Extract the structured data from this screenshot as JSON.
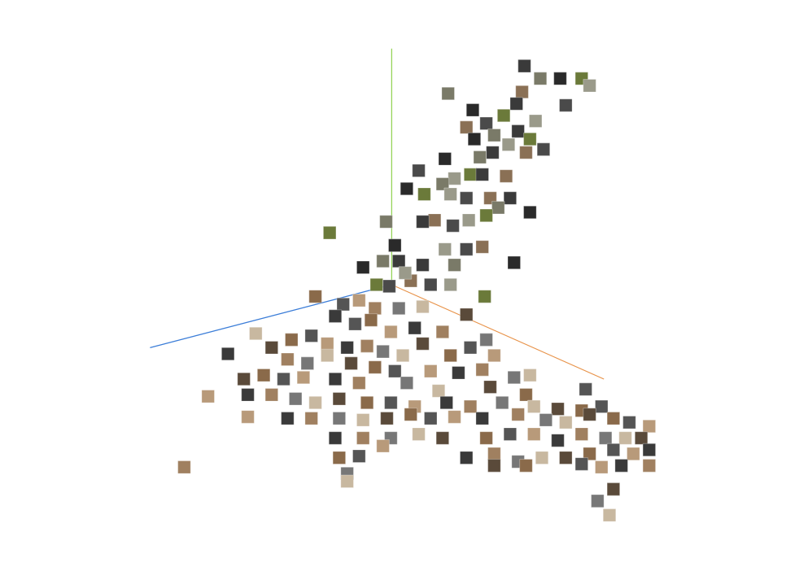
{
  "chart_data": {
    "type": "scatter",
    "xlim": [
      0,
      993
    ],
    "ylim": [
      697,
      0
    ],
    "grid": false,
    "tick_labels": false,
    "series": [
      {
        "type": "line",
        "color": "#8fd14f",
        "line_style": "solid",
        "x": [
          481,
          481
        ],
        "values": [
          350,
          50
        ]
      },
      {
        "type": "line",
        "color": "#3b7dd8",
        "line_style": "solid",
        "x": [
          481,
          177
        ],
        "values": [
          350,
          430
        ]
      },
      {
        "type": "line",
        "color": "#e8934a",
        "line_style": "solid",
        "x": [
          481,
          748
        ],
        "values": [
          350,
          470
        ]
      },
      {
        "type": "scatter",
        "marker": "square",
        "x": [
          648,
          668,
          693,
          720,
          730,
          700,
          645,
          638,
          552,
          583,
          622,
          662,
          600,
          575,
          640,
          610,
          585,
          655,
          628,
          672,
          650,
          608,
          592,
          548,
          580,
          560,
          515,
          625,
          595,
          545,
          500,
          522,
          555,
          575,
          605,
          630,
          615,
          655,
          600,
          578,
          558,
          535,
          520,
          474,
          485,
          403,
          548,
          575,
          595,
          520,
          560,
          635,
          598,
          555,
          530,
          505,
          490,
          470,
          445,
          462,
          498,
          478,
          385,
          420,
          440,
          410,
          460,
          490,
          520,
          575,
          455,
          435,
          480,
          510,
          545,
          600,
          310,
          330,
          355,
          380,
          400,
          425,
          450,
          470,
          495,
          520,
          555,
          580,
          610,
          275,
          350,
          375,
          400,
          430,
          460,
          485,
          530,
          565,
          595,
          635,
          655,
          295,
          320,
          345,
          370,
          410,
          440,
          500,
          540,
          605,
          650,
          725,
          250,
          300,
          330,
          360,
          385,
          415,
          450,
          480,
          510,
          550,
          580,
          620,
          660,
          690,
          720,
          745,
          300,
          350,
          380,
          415,
          445,
          475,
          505,
          530,
          560,
          595,
          640,
          675,
          700,
          730,
          760,
          780,
          805,
          410,
          445,
          480,
          515,
          545,
          600,
          630,
          660,
          690,
          720,
          750,
          775,
          795,
          415,
          440,
          470,
          575,
          610,
          640,
          670,
          700,
          730,
          760,
          785,
          805,
          220,
          425,
          425,
          610,
          650,
          720,
          745,
          770,
          805,
          740,
          755,
          760
        ],
        "values": [
          72,
          88,
          88,
          88,
          97,
          122,
          105,
          120,
          107,
          128,
          135,
          142,
          145,
          150,
          155,
          160,
          165,
          165,
          172,
          178,
          182,
          182,
          188,
          190,
          210,
          215,
          205,
          212,
          210,
          222,
          228,
          235,
          235,
          240,
          240,
          240,
          252,
          258,
          262,
          268,
          275,
          268,
          270,
          270,
          300,
          284,
          305,
          305,
          302,
          325,
          325,
          322,
          365,
          350,
          350,
          345,
          320,
          320,
          328,
          350,
          335,
          352,
          365,
          375,
          370,
          390,
          380,
          380,
          378,
          388,
          395,
          400,
          410,
          405,
          410,
          420,
          412,
          430,
          420,
          415,
          425,
          430,
          428,
          435,
          440,
          425,
          440,
          430,
          440,
          438,
          445,
          450,
          440,
          450,
          455,
          460,
          460,
          462,
          458,
          468,
          465,
          470,
          465,
          470,
          468,
          470,
          475,
          475,
          485,
          480,
          490,
          483,
          492,
          490,
          490,
          495,
          500,
          495,
          500,
          500,
          505,
          500,
          505,
          500,
          505,
          508,
          510,
          505,
          518,
          520,
          520,
          520,
          522,
          520,
          515,
          520,
          518,
          520,
          515,
          522,
          525,
          515,
          520,
          525,
          530,
          545,
          545,
          545,
          540,
          545,
          545,
          540,
          540,
          548,
          540,
          545,
          545,
          545,
          570,
          568,
          555,
          570,
          565,
          575,
          570,
          570,
          565,
          560,
          565,
          560,
          582,
          590,
          600,
          580,
          580,
          578,
          582,
          580,
          580,
          625,
          643,
          610
        ],
        "colors": [
          "#3a3a3a",
          "#7a7a68",
          "#2a2a2a",
          "#6b7a3a",
          "#9a9a8a",
          "#4a4a4a",
          "#8a7055",
          "#3a3a3a",
          "#7a7a68",
          "#2a2a2a",
          "#6b7a3a",
          "#9a9a8a",
          "#4a4a4a",
          "#8a7055",
          "#3a3a3a",
          "#7a7a68",
          "#2a2a2a",
          "#6b7a3a",
          "#9a9a8a",
          "#4a4a4a",
          "#8a7055",
          "#3a3a3a",
          "#7a7a68",
          "#2a2a2a",
          "#6b7a3a",
          "#9a9a8a",
          "#4a4a4a",
          "#8a7055",
          "#3a3a3a",
          "#7a7a68",
          "#2a2a2a",
          "#6b7a3a",
          "#9a9a8a",
          "#4a4a4a",
          "#8a7055",
          "#3a3a3a",
          "#7a7a68",
          "#2a2a2a",
          "#6b7a3a",
          "#9a9a8a",
          "#4a4a4a",
          "#8a7055",
          "#3a3a3a",
          "#7a7a68",
          "#2a2a2a",
          "#6b7a3a",
          "#9a9a8a",
          "#4a4a4a",
          "#8a7055",
          "#3a3a3a",
          "#7a7a68",
          "#2a2a2a",
          "#6b7a3a",
          "#9a9a8a",
          "#4a4a4a",
          "#8a7055",
          "#3a3a3a",
          "#7a7a68",
          "#2a2a2a",
          "#6b7a3a",
          "#9a9a8a",
          "#4a4a4a",
          "#8a6a4a",
          "#555555",
          "#b89a7a",
          "#3a3a3a",
          "#a08060",
          "#777777",
          "#c8b8a0",
          "#5a4a3a",
          "#8a6a4a",
          "#555555",
          "#b89a7a",
          "#3a3a3a",
          "#a08060",
          "#777777",
          "#c8b8a0",
          "#5a4a3a",
          "#8a6a4a",
          "#555555",
          "#b89a7a",
          "#3a3a3a",
          "#a08060",
          "#777777",
          "#c8b8a0",
          "#5a4a3a",
          "#8a6a4a",
          "#555555",
          "#b89a7a",
          "#3a3a3a",
          "#a08060",
          "#777777",
          "#c8b8a0",
          "#5a4a3a",
          "#8a6a4a",
          "#555555",
          "#b89a7a",
          "#3a3a3a",
          "#a08060",
          "#777777",
          "#c8b8a0",
          "#5a4a3a",
          "#8a6a4a",
          "#555555",
          "#b89a7a",
          "#3a3a3a",
          "#a08060",
          "#777777",
          "#c8b8a0",
          "#5a4a3a",
          "#8a6a4a",
          "#555555",
          "#b89a7a",
          "#3a3a3a",
          "#a08060",
          "#777777",
          "#c8b8a0",
          "#5a4a3a",
          "#8a6a4a",
          "#555555",
          "#b89a7a",
          "#3a3a3a",
          "#a08060",
          "#777777",
          "#c8b8a0",
          "#5a4a3a",
          "#8a6a4a",
          "#555555",
          "#b89a7a",
          "#3a3a3a",
          "#a08060",
          "#777777",
          "#c8b8a0",
          "#5a4a3a",
          "#8a6a4a",
          "#555555",
          "#b89a7a",
          "#3a3a3a",
          "#a08060",
          "#777777",
          "#c8b8a0",
          "#5a4a3a",
          "#8a6a4a",
          "#555555",
          "#b89a7a",
          "#3a3a3a",
          "#a08060",
          "#777777",
          "#c8b8a0",
          "#5a4a3a",
          "#8a6a4a",
          "#555555",
          "#b89a7a",
          "#3a3a3a",
          "#a08060",
          "#777777",
          "#c8b8a0",
          "#5a4a3a",
          "#8a6a4a",
          "#555555",
          "#b89a7a",
          "#3a3a3a",
          "#a08060",
          "#777777",
          "#c8b8a0",
          "#5a4a3a",
          "#8a6a4a",
          "#555555",
          "#b89a7a",
          "#3a3a3a",
          "#a08060",
          "#777777",
          "#c8b8a0",
          "#5a4a3a",
          "#8a6a4a",
          "#555555",
          "#b89a7a",
          "#3a3a3a",
          "#a08060",
          "#777777",
          "#c8b8a0",
          "#5a4a3a"
        ]
      }
    ]
  }
}
